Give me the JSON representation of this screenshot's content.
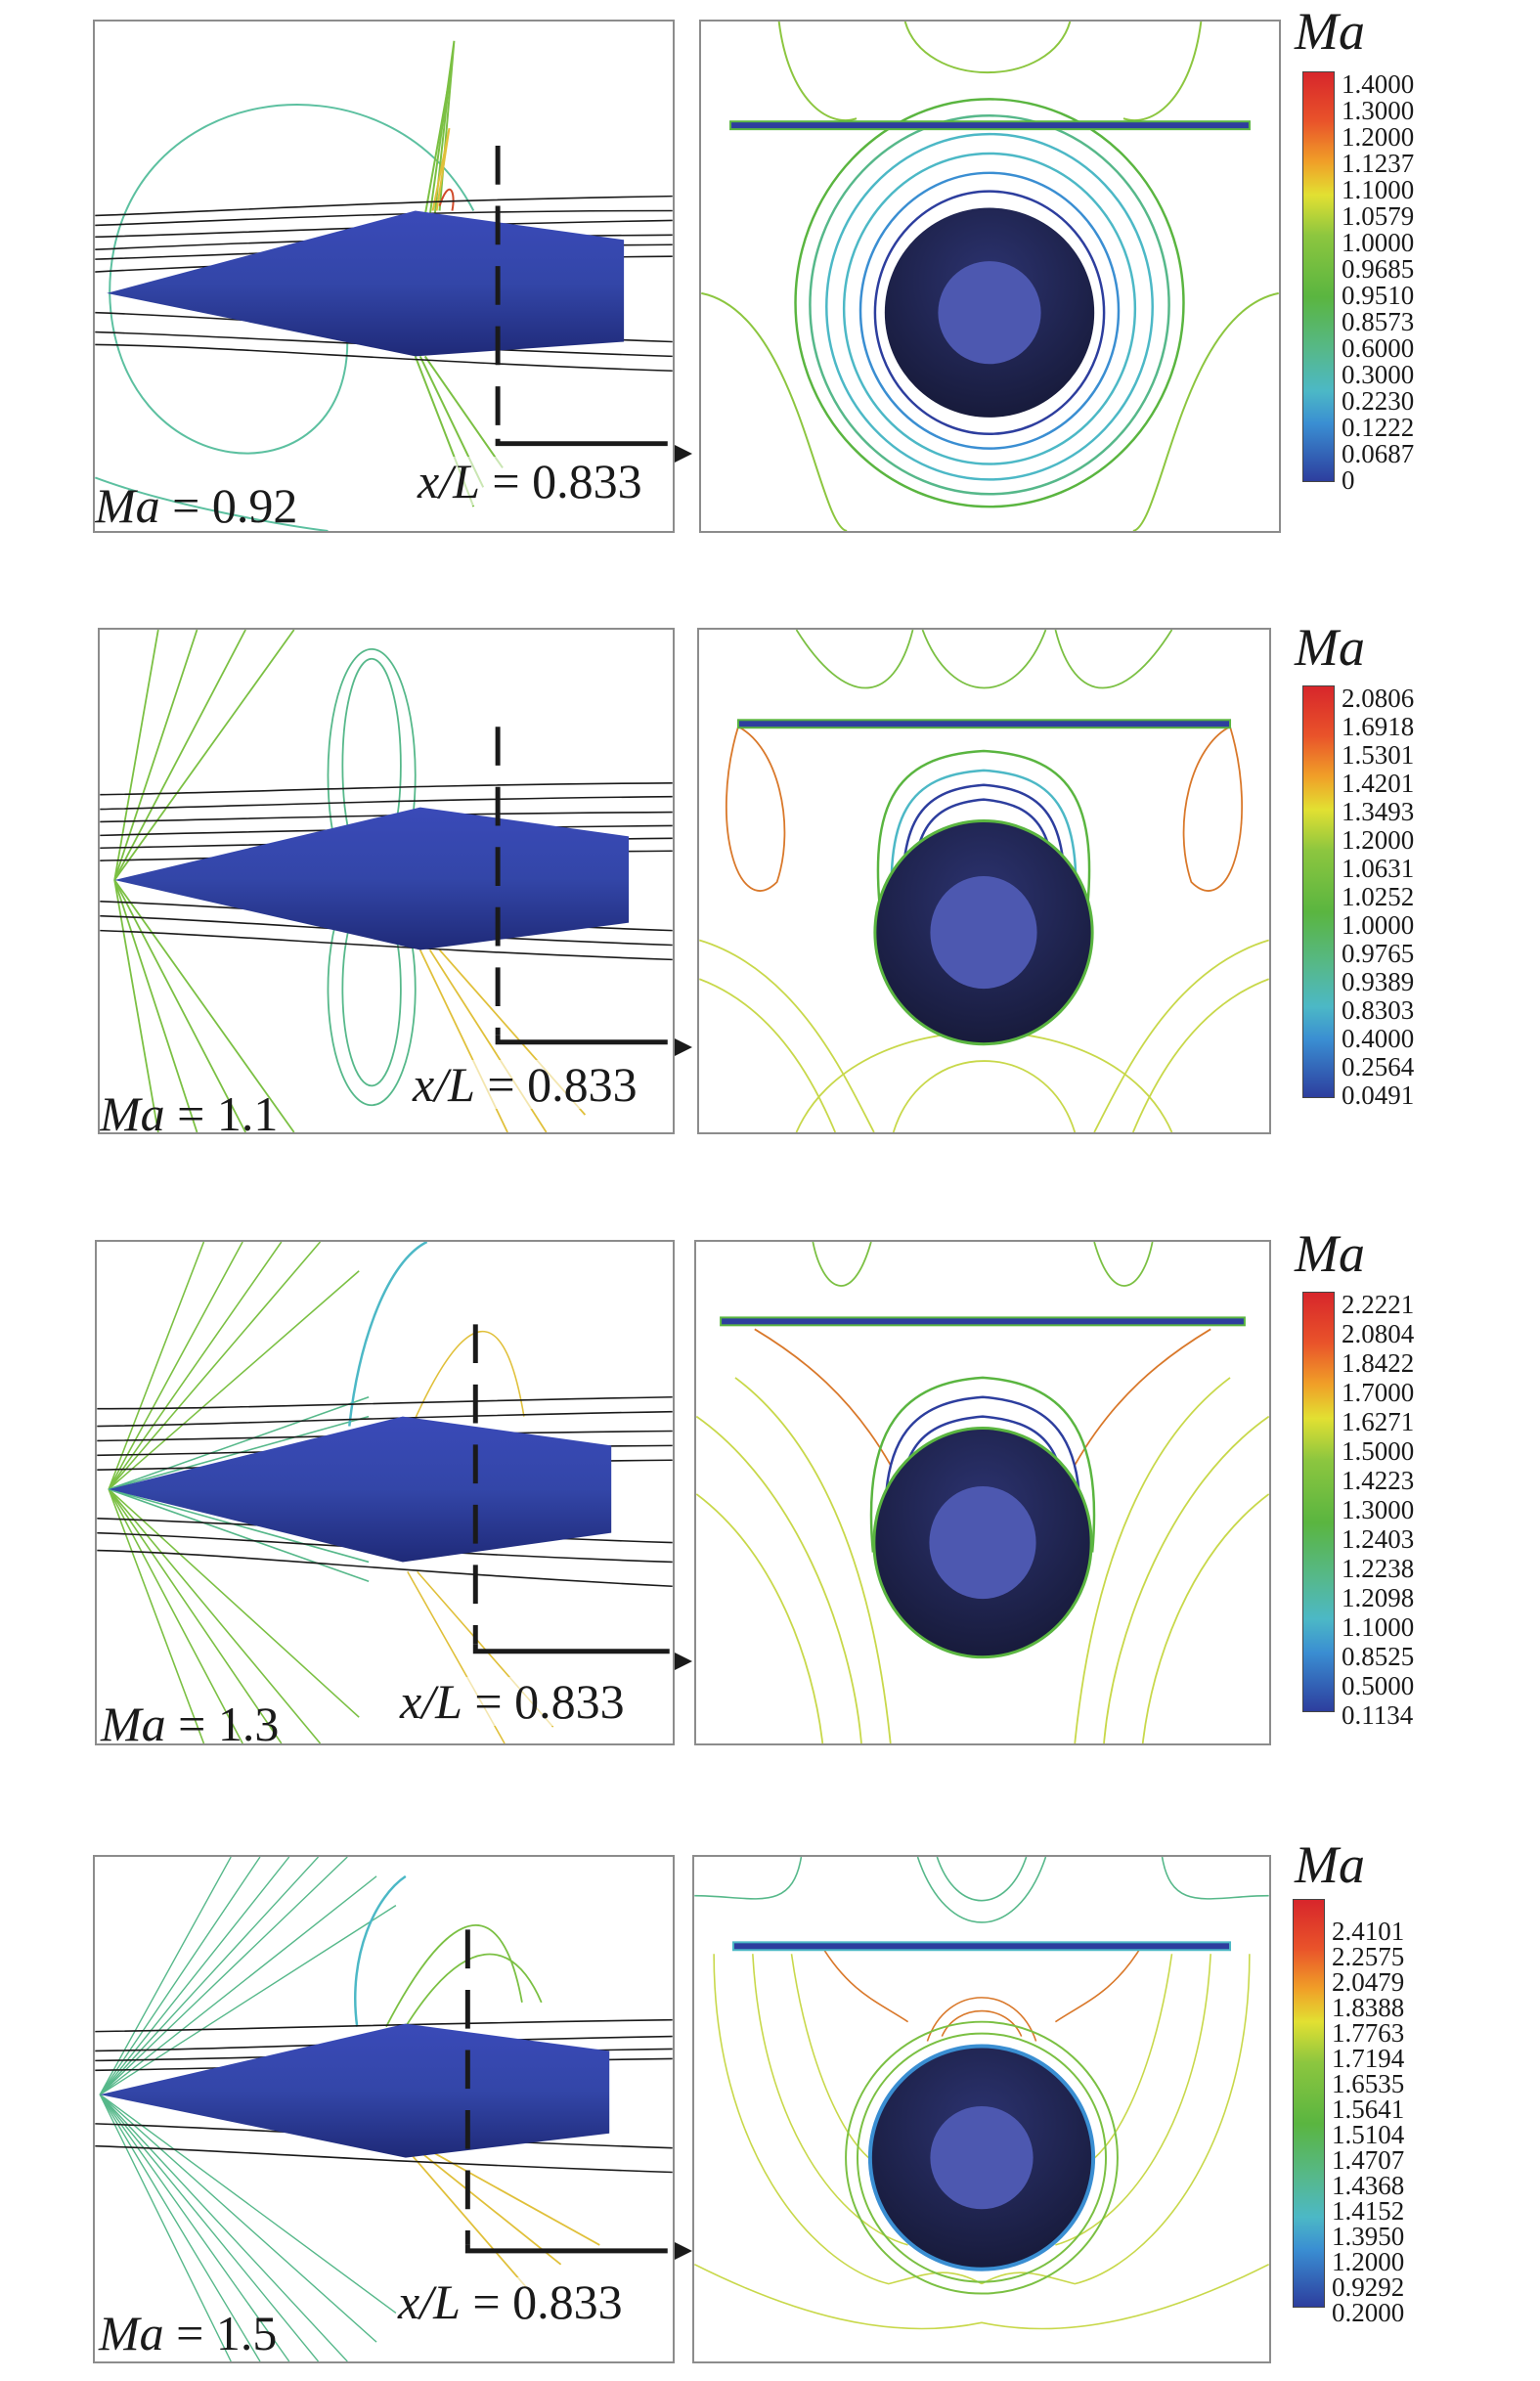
{
  "figure": {
    "section_label": "x/L = 0.833",
    "legend_title": "Ma",
    "colors": {
      "body_blue": "#2f3c9e",
      "body_dark": "#1c1f4a",
      "inner_circle": "#4d58b0",
      "streamline": "#1a1a1a",
      "frame": "#8c8c8c"
    }
  },
  "rows": [
    {
      "mach_label": "Ma = 0.92",
      "section_label": "x/L = 0.833",
      "legend": {
        "title": "Ma",
        "ticks": [
          "1.4000",
          "1.3000",
          "1.2000",
          "1.1237",
          "1.1000",
          "1.0579",
          "1.0000",
          "0.9685",
          "0.9510",
          "0.8573",
          "0.6000",
          "0.3000",
          "0.2230",
          "0.1222",
          "0.0687",
          "0"
        ]
      }
    },
    {
      "mach_label": "Ma = 1.1",
      "section_label": "x/L = 0.833",
      "legend": {
        "title": "Ma",
        "ticks": [
          "2.0806",
          "1.6918",
          "1.5301",
          "1.4201",
          "1.3493",
          "1.2000",
          "1.0631",
          "1.0252",
          "1.0000",
          "0.9765",
          "0.9389",
          "0.8303",
          "0.4000",
          "0.2564",
          "0.0491"
        ]
      }
    },
    {
      "mach_label": "Ma = 1.3",
      "section_label": "x/L = 0.833",
      "legend": {
        "title": "Ma",
        "ticks": [
          "2.2221",
          "2.0804",
          "1.8422",
          "1.7000",
          "1.6271",
          "1.5000",
          "1.4223",
          "1.3000",
          "1.2403",
          "1.2238",
          "1.2098",
          "1.1000",
          "0.8525",
          "0.5000",
          "0.1134"
        ]
      }
    },
    {
      "mach_label": "Ma = 1.5",
      "section_label": "x/L = 0.833",
      "legend": {
        "title": "Ma",
        "ticks": [
          "2.4101",
          "2.2575",
          "2.0479",
          "1.8388",
          "1.7763",
          "1.7194",
          "1.6535",
          "1.5641",
          "1.5104",
          "1.4707",
          "1.4368",
          "1.4152",
          "1.3950",
          "1.2000",
          "0.9292",
          "0.2000"
        ]
      }
    }
  ],
  "chart_data": [
    {
      "type": "heatmap",
      "title": "Mach contours, Ma = 0.92",
      "panels": [
        "side view with streamlines",
        "cross-section at x/L = 0.833"
      ],
      "colorbar_label": "Ma",
      "colorbar_ticks": [
        1.4,
        1.3,
        1.2,
        1.1237,
        1.1,
        1.0579,
        1.0,
        0.9685,
        0.951,
        0.8573,
        0.6,
        0.3,
        0.223,
        0.1222,
        0.0687,
        0
      ],
      "range": [
        0,
        1.4
      ]
    },
    {
      "type": "heatmap",
      "title": "Mach contours, Ma = 1.1",
      "panels": [
        "side view with streamlines",
        "cross-section at x/L = 0.833"
      ],
      "colorbar_label": "Ma",
      "colorbar_ticks": [
        2.0806,
        1.6918,
        1.5301,
        1.4201,
        1.3493,
        1.2,
        1.0631,
        1.0252,
        1.0,
        0.9765,
        0.9389,
        0.8303,
        0.4,
        0.2564,
        0.0491
      ],
      "range": [
        0.0491,
        2.0806
      ]
    },
    {
      "type": "heatmap",
      "title": "Mach contours, Ma = 1.3",
      "panels": [
        "side view with streamlines",
        "cross-section at x/L = 0.833"
      ],
      "colorbar_label": "Ma",
      "colorbar_ticks": [
        2.2221,
        2.0804,
        1.8422,
        1.7,
        1.6271,
        1.5,
        1.4223,
        1.3,
        1.2403,
        1.2238,
        1.2098,
        1.1,
        0.8525,
        0.5,
        0.1134
      ],
      "range": [
        0.1134,
        2.2221
      ]
    },
    {
      "type": "heatmap",
      "title": "Mach contours, Ma = 1.5",
      "panels": [
        "side view with streamlines",
        "cross-section at x/L = 0.833"
      ],
      "colorbar_label": "Ma",
      "colorbar_ticks": [
        2.4101,
        2.2575,
        2.0479,
        1.8388,
        1.7763,
        1.7194,
        1.6535,
        1.5641,
        1.5104,
        1.4707,
        1.4368,
        1.4152,
        1.395,
        1.2,
        0.9292,
        0.2
      ],
      "range": [
        0.2,
        2.4101
      ]
    }
  ]
}
